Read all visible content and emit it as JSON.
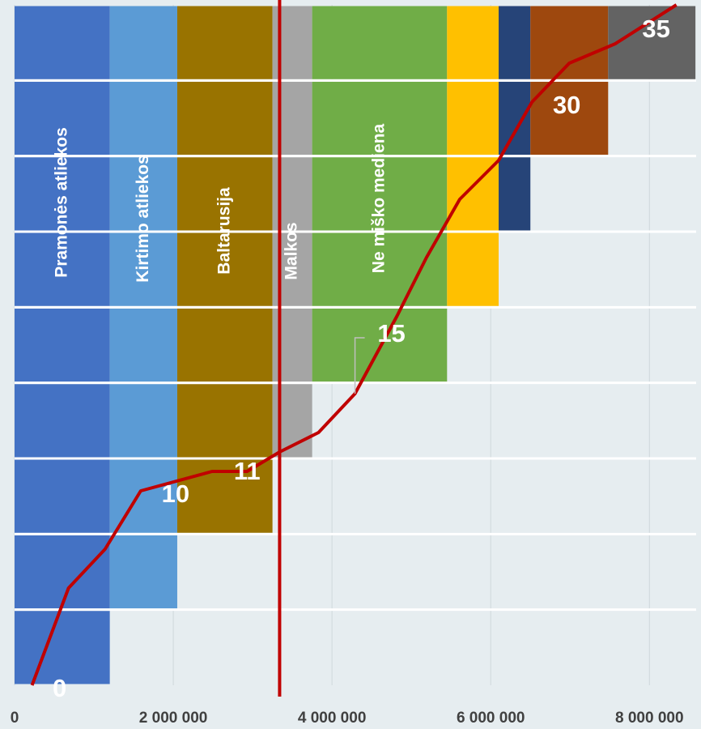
{
  "chart_data": {
    "type": "bar",
    "orientation": "horizontal",
    "stacked": true,
    "categories": [
      null,
      null,
      null,
      null,
      null,
      null,
      null,
      null,
      null
    ],
    "series": [
      {
        "name": "Pramonės atliekos",
        "color": "#4472c4",
        "values": [
          1200000,
          1200000,
          1200000,
          1200000,
          1200000,
          1200000,
          1200000,
          1200000,
          1200000
        ]
      },
      {
        "name": "Kirtimo atliekos",
        "color": "#5b9bd5",
        "values": [
          null,
          850000,
          850000,
          850000,
          850000,
          850000,
          850000,
          850000,
          850000
        ]
      },
      {
        "name": "Baltarusija",
        "color": "#997300",
        "values": [
          null,
          null,
          1200000,
          1200000,
          1200000,
          1200000,
          1200000,
          1200000,
          1200000
        ]
      },
      {
        "name": "Malkos",
        "color": "#a5a5a5",
        "values": [
          null,
          null,
          null,
          500000,
          500000,
          500000,
          500000,
          500000,
          500000
        ]
      },
      {
        "name": "Ne miško mediena",
        "color": "#70ad47",
        "values": [
          null,
          null,
          null,
          null,
          1700000,
          1700000,
          1700000,
          1700000,
          1700000
        ]
      },
      {
        "color": "#ffc000",
        "values": [
          null,
          null,
          null,
          null,
          null,
          650000,
          650000,
          650000,
          650000
        ]
      },
      {
        "color": "#264478",
        "values": [
          null,
          null,
          null,
          null,
          null,
          null,
          400000,
          400000,
          400000
        ]
      },
      {
        "color": "#9e480e",
        "values": [
          null,
          null,
          null,
          null,
          null,
          null,
          null,
          980000,
          980000
        ]
      },
      {
        "color": "#636363",
        "values": [
          null,
          null,
          null,
          null,
          null,
          null,
          null,
          null,
          1100000
        ]
      }
    ],
    "line": {
      "color": "#c00000",
      "x": [
        220000,
        680000,
        1140000,
        1590000,
        2490000,
        2930000,
        3340000,
        3830000,
        4290000,
        4820000,
        5190000,
        5610000,
        6100000,
        6520000,
        6990000,
        7570000,
        8340000
      ],
      "values": [
        0,
        5,
        7,
        10,
        11,
        11,
        12,
        13,
        15,
        19,
        22,
        25,
        27,
        30,
        32,
        33,
        35
      ],
      "value_labels": [
        "0",
        null,
        null,
        "10",
        null,
        "11",
        null,
        null,
        "15",
        null,
        null,
        null,
        null,
        "30",
        null,
        null,
        "35"
      ]
    },
    "reference_line": {
      "value": 3340000,
      "color": "#c00000"
    },
    "xlim": [
      0,
      8650000
    ],
    "xticks": [
      {
        "value": 0,
        "label": "0"
      },
      {
        "value": 2000000,
        "label": "2 000 000"
      },
      {
        "value": 4000000,
        "label": "4 000 000"
      },
      {
        "value": 6000000,
        "label": "6 000 000"
      },
      {
        "value": 8000000,
        "label": "8 000 000"
      }
    ],
    "ylim": [
      0,
      35
    ],
    "grid": true
  }
}
